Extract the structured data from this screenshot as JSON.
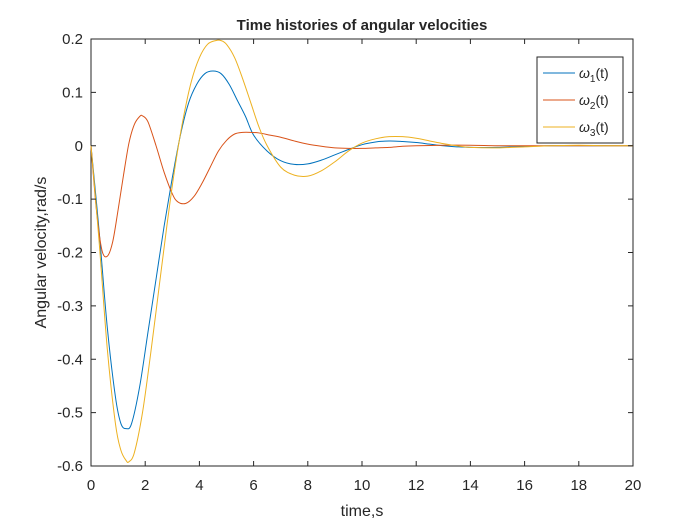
{
  "chart_data": {
    "type": "line",
    "title": "Time histories of angular velocities",
    "xlabel": "time,s",
    "ylabel": "Angular velocity,rad/s",
    "xlim": [
      0,
      20
    ],
    "ylim": [
      -0.6,
      0.2
    ],
    "xticks": [
      0,
      2,
      4,
      6,
      8,
      10,
      12,
      14,
      16,
      18,
      20
    ],
    "yticks": [
      -0.6,
      -0.5,
      -0.4,
      -0.3,
      -0.2,
      -0.1,
      0,
      0.1,
      0.2
    ],
    "grid": false,
    "legend_position": "top-right",
    "colors": {
      "series1": "#0072bd",
      "series2": "#d95319",
      "series3": "#edb120",
      "axes": "#262626"
    },
    "series": [
      {
        "name": "ω1(t)",
        "legend_symbol": "ω",
        "legend_sub": "1",
        "legend_suffix": "(t)",
        "color": "#0072bd",
        "x": [
          0,
          0.3,
          0.6,
          0.9,
          1.1,
          1.3,
          1.5,
          1.8,
          2.1,
          2.4,
          2.7,
          3.0,
          3.3,
          3.6,
          3.9,
          4.2,
          4.5,
          4.8,
          5.1,
          5.4,
          5.7,
          6.0,
          6.5,
          7.0,
          7.5,
          8.0,
          8.5,
          9.0,
          9.5,
          10.0,
          10.5,
          11.0,
          11.5,
          12.0,
          12.5,
          13.0,
          13.5,
          14.0,
          15.0,
          16.0,
          17.0,
          18.0,
          19.0,
          20.0
        ],
        "y": [
          0,
          -0.16,
          -0.34,
          -0.47,
          -0.52,
          -0.53,
          -0.52,
          -0.45,
          -0.35,
          -0.25,
          -0.15,
          -0.06,
          0.02,
          0.08,
          0.115,
          0.135,
          0.14,
          0.135,
          0.115,
          0.085,
          0.055,
          0.02,
          -0.01,
          -0.028,
          -0.035,
          -0.034,
          -0.027,
          -0.017,
          -0.007,
          0.002,
          0.007,
          0.009,
          0.008,
          0.006,
          0.003,
          0.0,
          -0.002,
          -0.003,
          -0.003,
          -0.001,
          0.0,
          0.0,
          0.0,
          0.0
        ]
      },
      {
        "name": "ω2(t)",
        "legend_symbol": "ω",
        "legend_sub": "2",
        "legend_suffix": "(t)",
        "color": "#d95319",
        "x": [
          0,
          0.2,
          0.4,
          0.6,
          0.8,
          1.0,
          1.2,
          1.4,
          1.6,
          1.8,
          1.9,
          2.1,
          2.4,
          2.7,
          3.0,
          3.2,
          3.5,
          3.8,
          4.1,
          4.4,
          4.7,
          5.0,
          5.3,
          5.6,
          5.9,
          6.2,
          6.6,
          7.0,
          7.5,
          8.0,
          8.5,
          9.0,
          9.5,
          10.0,
          10.5,
          11.0,
          11.5,
          12.0,
          13.0,
          14.0,
          15.0,
          16.0,
          18.0,
          20.0
        ],
        "y": [
          0,
          -0.12,
          -0.195,
          -0.207,
          -0.18,
          -0.12,
          -0.055,
          0.005,
          0.04,
          0.055,
          0.056,
          0.045,
          0.0,
          -0.05,
          -0.09,
          -0.105,
          -0.108,
          -0.095,
          -0.07,
          -0.04,
          -0.01,
          0.01,
          0.022,
          0.025,
          0.025,
          0.024,
          0.02,
          0.016,
          0.009,
          0.003,
          -0.001,
          -0.004,
          -0.005,
          -0.005,
          -0.004,
          -0.003,
          -0.001,
          0.0,
          0.001,
          0.001,
          0.0,
          0.0,
          0.0,
          0.0
        ]
      },
      {
        "name": "ω3(t)",
        "legend_symbol": "ω",
        "legend_sub": "3",
        "legend_suffix": "(t)",
        "color": "#edb120",
        "x": [
          0,
          0.3,
          0.6,
          0.9,
          1.1,
          1.3,
          1.4,
          1.6,
          1.9,
          2.2,
          2.5,
          2.8,
          3.1,
          3.4,
          3.7,
          4.0,
          4.3,
          4.6,
          4.8,
          5.0,
          5.3,
          5.6,
          5.9,
          6.2,
          6.5,
          7.0,
          7.5,
          8.0,
          8.5,
          9.0,
          9.5,
          10.0,
          10.5,
          11.0,
          11.5,
          12.0,
          12.5,
          13.0,
          13.5,
          14.0,
          15.0,
          16.0,
          17.0,
          18.0,
          19.0,
          20.0
        ],
        "y": [
          0,
          -0.18,
          -0.38,
          -0.52,
          -0.57,
          -0.59,
          -0.592,
          -0.575,
          -0.5,
          -0.39,
          -0.27,
          -0.15,
          -0.04,
          0.05,
          0.12,
          0.165,
          0.19,
          0.197,
          0.197,
          0.19,
          0.165,
          0.125,
          0.08,
          0.035,
          0.0,
          -0.04,
          -0.055,
          -0.057,
          -0.047,
          -0.03,
          -0.01,
          0.005,
          0.013,
          0.017,
          0.017,
          0.014,
          0.009,
          0.004,
          0.0,
          -0.003,
          -0.004,
          -0.002,
          0.0,
          0.001,
          0.0,
          0.0
        ]
      }
    ]
  }
}
